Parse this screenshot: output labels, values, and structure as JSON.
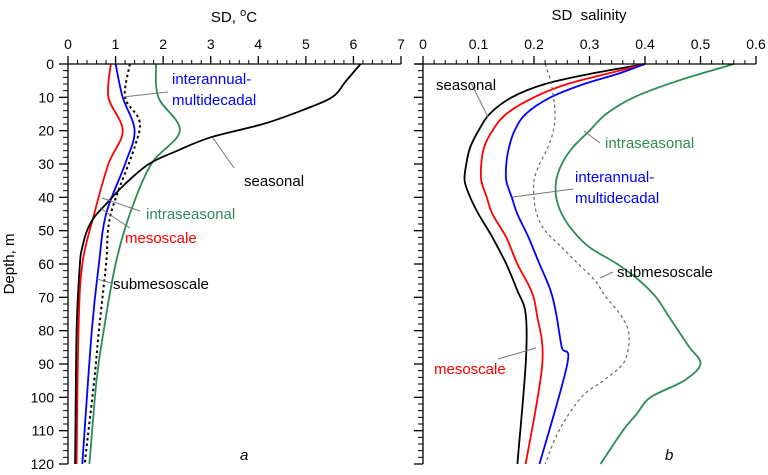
{
  "chart_data": [
    {
      "type": "line",
      "panel_label": "a",
      "title": "SD, °C",
      "title_parts": {
        "base": "SD, ",
        "sup": "o",
        "unit": "C"
      },
      "xlabel": "SD, °C",
      "ylabel": "Depth, m",
      "xlim": [
        0,
        7
      ],
      "ylim": [
        0,
        120
      ],
      "y_inverted": true,
      "x_ticks": [
        0,
        1,
        2,
        3,
        4,
        5,
        6,
        7
      ],
      "y_ticks": [
        0,
        10,
        20,
        30,
        40,
        50,
        60,
        70,
        80,
        90,
        100,
        110,
        120
      ],
      "x_axis_position": "top",
      "grid": false,
      "series": [
        {
          "name": "mesoscale",
          "color": "#ff0000",
          "style": "solid",
          "depth": [
            0,
            10,
            20,
            30,
            45,
            60,
            80,
            120
          ],
          "values": [
            0.9,
            0.85,
            1.15,
            0.85,
            0.55,
            0.3,
            0.22,
            0.18
          ]
        },
        {
          "name": "interannual-multidecadal",
          "color": "#0000ff",
          "style": "solid",
          "depth": [
            0,
            10,
            20,
            30,
            45,
            60,
            80,
            120
          ],
          "values": [
            1.0,
            1.15,
            1.4,
            1.2,
            0.8,
            0.65,
            0.5,
            0.3
          ]
        },
        {
          "name": "submesoscale",
          "color": "#000000",
          "style": "dotted",
          "depth": [
            0,
            10,
            17,
            25,
            45,
            60,
            80,
            95,
            120
          ],
          "values": [
            1.3,
            1.2,
            1.5,
            1.4,
            0.9,
            0.8,
            0.65,
            0.55,
            0.35
          ]
        },
        {
          "name": "intraseasonal",
          "color": "#2e8b57",
          "style": "solid",
          "depth": [
            0,
            10,
            20,
            30,
            45,
            60,
            80,
            95,
            120
          ],
          "values": [
            1.85,
            1.9,
            2.35,
            1.75,
            1.3,
            1.0,
            0.75,
            0.6,
            0.45
          ]
        },
        {
          "name": "seasonal",
          "color": "#000000",
          "style": "solid",
          "depth": [
            0,
            5,
            10,
            14,
            18,
            22,
            26,
            30,
            36,
            42,
            46,
            50,
            55,
            60,
            80,
            120
          ],
          "values": [
            6.15,
            5.85,
            5.55,
            4.9,
            4.1,
            3.0,
            2.3,
            1.7,
            1.2,
            0.8,
            0.55,
            0.4,
            0.3,
            0.25,
            0.18,
            0.15
          ]
        }
      ],
      "annotations": [
        {
          "text_lines": [
            "interannual-",
            "multidecadal"
          ],
          "color": "#0000ff",
          "series": "interannual-multidecadal"
        },
        {
          "text_lines": [
            "seasonal"
          ],
          "color": "#000000",
          "series": "seasonal"
        },
        {
          "text_lines": [
            "intraseasonal"
          ],
          "color": "#2e8b57",
          "series": "intraseasonal"
        },
        {
          "text_lines": [
            "mesoscale"
          ],
          "color": "#ff0000",
          "series": "mesoscale"
        },
        {
          "text_lines": [
            "submesoscale"
          ],
          "color": "#000000",
          "series": "submesoscale"
        }
      ]
    },
    {
      "type": "line",
      "panel_label": "b",
      "title": "SD  salinity",
      "xlabel": "SD  salinity",
      "ylabel": "",
      "xlim": [
        0,
        0.6
      ],
      "ylim": [
        0,
        120
      ],
      "y_inverted": true,
      "x_ticks": [
        "0",
        "0.1",
        "0.2",
        "0.3",
        "0.4",
        "0.5",
        "0.6"
      ],
      "x_tick_values": [
        0,
        0.1,
        0.2,
        0.3,
        0.4,
        0.5,
        0.6
      ],
      "x_axis_position": "top",
      "grid": false,
      "series": [
        {
          "name": "seasonal",
          "color": "#000000",
          "style": "solid",
          "depth": [
            0,
            3,
            6,
            10,
            15,
            20,
            25,
            30,
            35,
            40,
            45,
            52,
            60,
            68,
            75,
            90,
            120
          ],
          "values": [
            0.4,
            0.3,
            0.22,
            0.16,
            0.12,
            0.1,
            0.085,
            0.078,
            0.075,
            0.085,
            0.1,
            0.125,
            0.15,
            0.17,
            0.185,
            0.185,
            0.17
          ]
        },
        {
          "name": "mesoscale",
          "color": "#ff0000",
          "style": "solid",
          "depth": [
            0,
            3,
            6,
            10,
            15,
            20,
            25,
            30,
            35,
            40,
            45,
            52,
            60,
            68,
            75,
            90,
            120
          ],
          "values": [
            0.4,
            0.33,
            0.26,
            0.2,
            0.15,
            0.125,
            0.11,
            0.105,
            0.105,
            0.115,
            0.125,
            0.15,
            0.17,
            0.195,
            0.205,
            0.215,
            0.185
          ]
        },
        {
          "name": "interannual-multidecadal",
          "color": "#0000ff",
          "style": "solid",
          "depth": [
            0,
            3,
            6,
            10,
            15,
            20,
            25,
            30,
            35,
            40,
            45,
            52,
            60,
            68,
            75,
            85,
            90,
            120
          ],
          "values": [
            0.4,
            0.35,
            0.29,
            0.23,
            0.185,
            0.165,
            0.155,
            0.15,
            0.15,
            0.16,
            0.17,
            0.19,
            0.21,
            0.23,
            0.24,
            0.25,
            0.26,
            0.21
          ]
        },
        {
          "name": "submesoscale",
          "color": "#666666",
          "style": "dashed",
          "depth": [
            0,
            5,
            10,
            15,
            20,
            25,
            30,
            35,
            40,
            45,
            50,
            55,
            60,
            65,
            70,
            75,
            80,
            85,
            90,
            95,
            100,
            110,
            120
          ],
          "values": [
            0.22,
            0.23,
            0.235,
            0.238,
            0.235,
            0.225,
            0.21,
            0.2,
            0.2,
            0.205,
            0.22,
            0.25,
            0.28,
            0.31,
            0.33,
            0.355,
            0.37,
            0.37,
            0.36,
            0.325,
            0.285,
            0.245,
            0.22
          ]
        },
        {
          "name": "intraseasonal",
          "color": "#2e8b57",
          "style": "solid",
          "depth": [
            0,
            5,
            10,
            15,
            20,
            25,
            30,
            35,
            40,
            45,
            50,
            55,
            60,
            65,
            70,
            75,
            80,
            85,
            90,
            95,
            100,
            105,
            110,
            120
          ],
          "values": [
            0.56,
            0.46,
            0.38,
            0.33,
            0.3,
            0.27,
            0.25,
            0.24,
            0.24,
            0.25,
            0.27,
            0.3,
            0.35,
            0.39,
            0.42,
            0.44,
            0.46,
            0.48,
            0.5,
            0.47,
            0.41,
            0.385,
            0.36,
            0.32
          ]
        }
      ],
      "annotations": [
        {
          "text_lines": [
            "seasonal"
          ],
          "color": "#000000",
          "series": "seasonal"
        },
        {
          "text_lines": [
            "intraseasonal"
          ],
          "color": "#2e8b57",
          "series": "intraseasonal"
        },
        {
          "text_lines": [
            "interannual-",
            "multidecadal"
          ],
          "color": "#0000ff",
          "series": "interannual-multidecadal"
        },
        {
          "text_lines": [
            "submesoscale"
          ],
          "color": "#000000",
          "series": "submesoscale"
        },
        {
          "text_lines": [
            "mesoscale"
          ],
          "color": "#ff0000",
          "series": "mesoscale"
        }
      ]
    }
  ]
}
